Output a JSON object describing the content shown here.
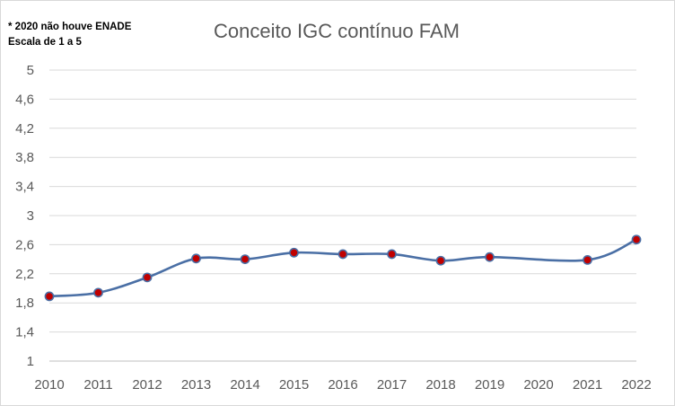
{
  "chart_data": {
    "type": "line",
    "title": "Conceito IGC contínuo FAM",
    "notes": [
      "* 2020 não houve ENADE",
      "Escala de 1 a 5"
    ],
    "xlabel": "",
    "ylabel": "",
    "categories": [
      "2010",
      "2011",
      "2012",
      "2013",
      "2014",
      "2015",
      "2016",
      "2017",
      "2018",
      "2019",
      "2020",
      "2021",
      "2022"
    ],
    "ylim": [
      1,
      5
    ],
    "yticks": [
      1,
      1.4,
      1.8,
      2.2,
      2.6,
      3,
      3.4,
      3.8,
      4.2,
      4.6,
      5
    ],
    "ytick_labels": [
      "1",
      "1,4",
      "1,8",
      "2,2",
      "2,6",
      "3",
      "3,4",
      "3,8",
      "4,2",
      "4,6",
      "5"
    ],
    "grid": true,
    "smooth": true,
    "line_color": "#4a6fa5",
    "marker_fill": "#c00000",
    "marker_edge": "#4a6fa5",
    "series": [
      {
        "values": [
          1.89,
          1.94,
          2.15,
          2.41,
          2.4,
          2.49,
          2.47,
          2.47,
          2.38,
          2.43,
          null,
          2.39,
          2.67
        ]
      }
    ]
  }
}
